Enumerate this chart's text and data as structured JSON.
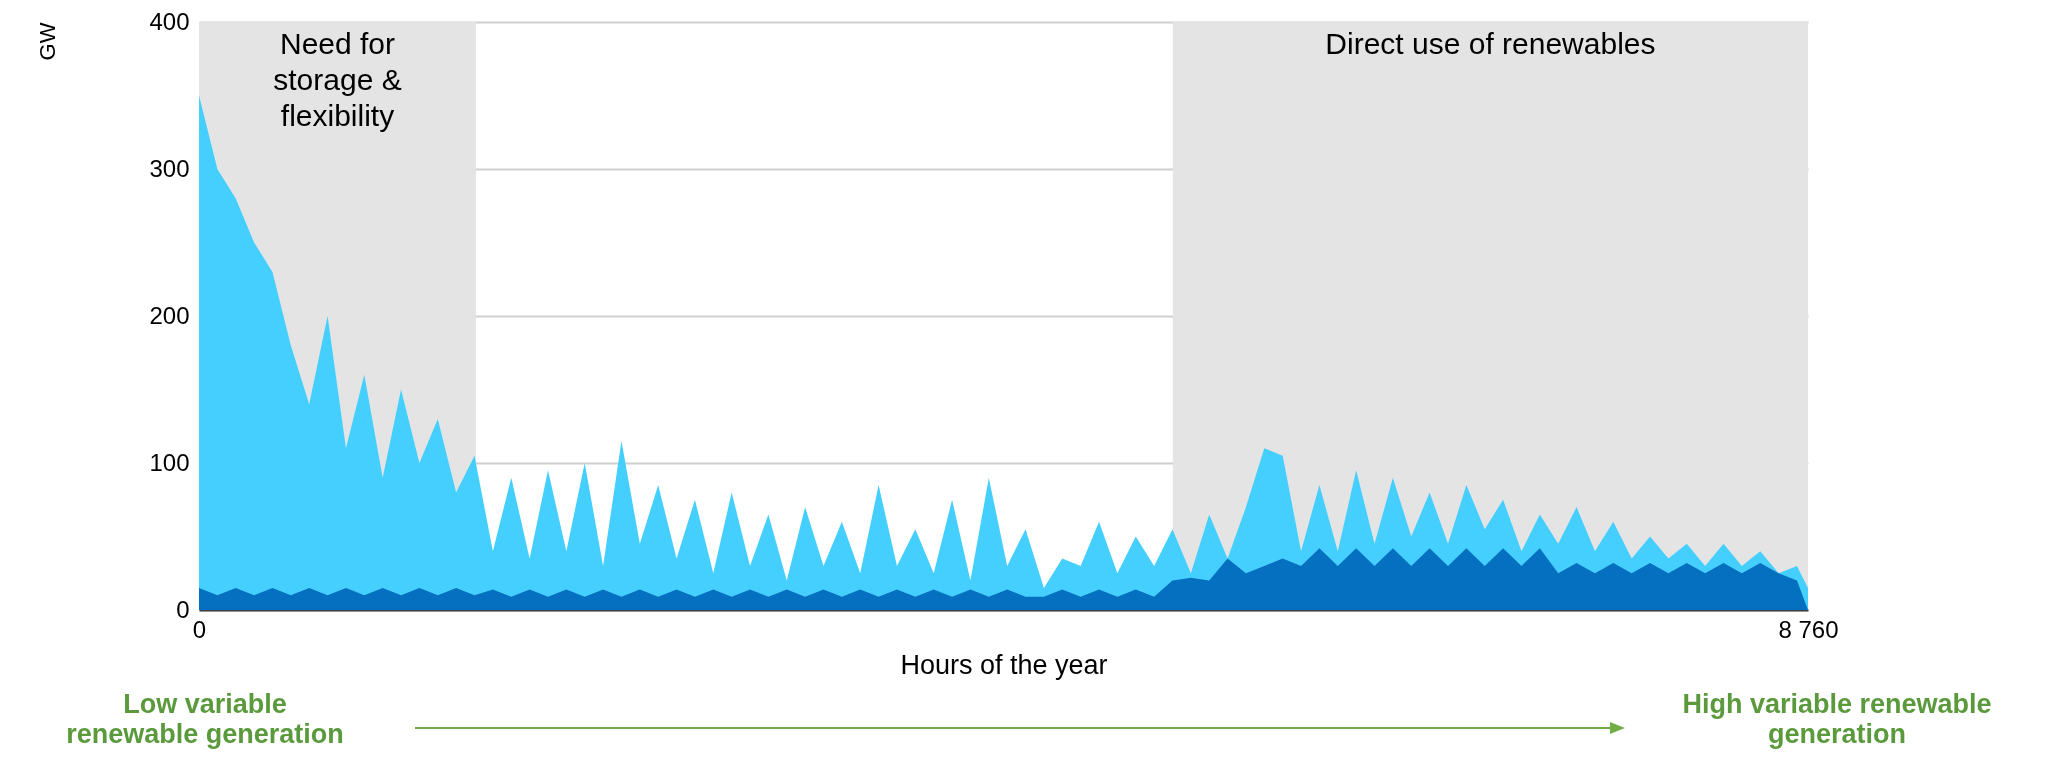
{
  "chart_data": {
    "type": "area",
    "xlabel": "Hours of the year",
    "ylabel": "GW",
    "x": [
      0,
      100,
      200,
      300,
      400,
      500,
      600,
      700,
      800,
      900,
      1000,
      1100,
      1200,
      1300,
      1400,
      1500,
      1600,
      1700,
      1800,
      1900,
      2000,
      2100,
      2200,
      2300,
      2400,
      2500,
      2600,
      2700,
      2800,
      2900,
      3000,
      3100,
      3200,
      3300,
      3400,
      3500,
      3600,
      3700,
      3800,
      3900,
      4000,
      4100,
      4200,
      4300,
      4400,
      4500,
      4600,
      4700,
      4800,
      4900,
      5000,
      5100,
      5200,
      5300,
      5400,
      5500,
      5600,
      5700,
      5800,
      5900,
      6000,
      6100,
      6200,
      6300,
      6400,
      6500,
      6600,
      6700,
      6800,
      6900,
      7000,
      7100,
      7200,
      7300,
      7400,
      7500,
      7600,
      7700,
      7800,
      7900,
      8000,
      8100,
      8200,
      8300,
      8400,
      8500,
      8600,
      8700,
      8760
    ],
    "series": [
      {
        "color": "#45cfff",
        "values": [
          350,
          300,
          280,
          250,
          230,
          180,
          140,
          200,
          110,
          160,
          90,
          150,
          100,
          130,
          80,
          105,
          40,
          90,
          35,
          95,
          40,
          100,
          30,
          115,
          45,
          85,
          35,
          75,
          25,
          80,
          30,
          65,
          20,
          70,
          30,
          60,
          25,
          85,
          30,
          55,
          25,
          75,
          20,
          90,
          30,
          55,
          15,
          35,
          30,
          60,
          25,
          50,
          30,
          55,
          25,
          65,
          35,
          70,
          110,
          105,
          40,
          85,
          40,
          95,
          45,
          90,
          50,
          80,
          45,
          85,
          55,
          75,
          40,
          65,
          45,
          70,
          40,
          60,
          35,
          50,
          35,
          45,
          30,
          45,
          30,
          40,
          25,
          30,
          15
        ]
      },
      {
        "color": "#0570c0",
        "values": [
          15,
          10,
          15,
          10,
          15,
          10,
          15,
          10,
          15,
          10,
          15,
          10,
          15,
          10,
          15,
          10,
          14,
          9,
          14,
          9,
          14,
          9,
          14,
          9,
          14,
          9,
          14,
          9,
          14,
          9,
          14,
          9,
          14,
          9,
          14,
          9,
          14,
          9,
          14,
          9,
          14,
          9,
          14,
          9,
          14,
          9,
          9,
          14,
          9,
          14,
          9,
          14,
          9,
          20,
          22,
          20,
          35,
          25,
          30,
          35,
          30,
          42,
          30,
          42,
          30,
          42,
          30,
          42,
          30,
          42,
          30,
          42,
          30,
          42,
          25,
          32,
          25,
          32,
          25,
          32,
          25,
          32,
          25,
          32,
          25,
          32,
          25,
          20,
          0
        ]
      }
    ],
    "xlim": [
      0,
      8760
    ],
    "xticks": [
      0,
      {
        "value": 8760,
        "label": "8 760"
      }
    ],
    "ylim": [
      0,
      400
    ],
    "yticks": [
      0,
      100,
      200,
      300,
      400
    ],
    "grid": "y",
    "bands": [
      {
        "axis": "x",
        "from": 0,
        "to": 1508,
        "label": "Need for\nstorage &\nflexibility",
        "color": "#e4e4e4"
      },
      {
        "axis": "x",
        "from": 5302,
        "to": 8760,
        "label": "Direct use of renewables",
        "color": "#e4e4e4"
      }
    ],
    "annotations": [
      "Low variable\nrenewable generation",
      "High variable renewable\ngeneration"
    ]
  }
}
